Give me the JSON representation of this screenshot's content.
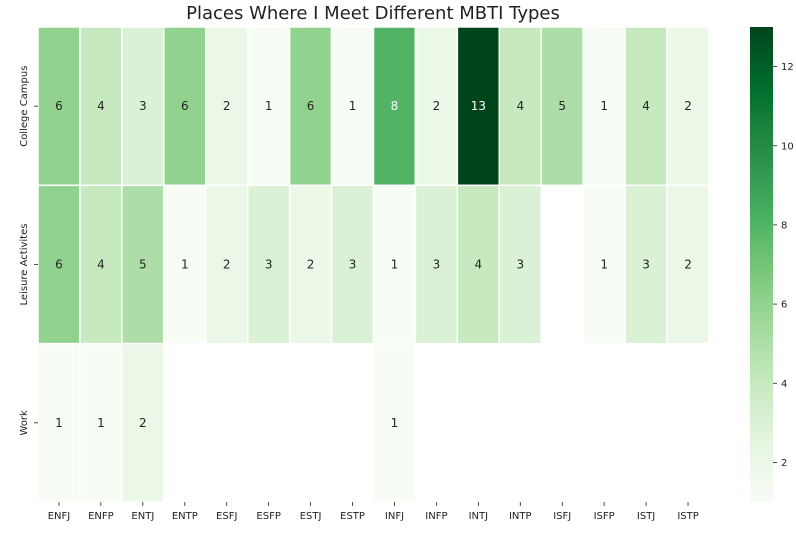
{
  "chart_data": {
    "type": "heatmap",
    "title": "Places Where I Meet Different MBTI Types",
    "columns": [
      "ENFJ",
      "ENFP",
      "ENTJ",
      "ENTP",
      "ESFJ",
      "ESFP",
      "ESTJ",
      "ESTP",
      "INFJ",
      "INFP",
      "INTJ",
      "INTP",
      "ISFJ",
      "ISFP",
      "ISTJ",
      "ISTP"
    ],
    "rows": [
      "College Campus",
      "Leisure Activites",
      "Work"
    ],
    "values": [
      [
        6,
        4,
        3,
        6,
        2,
        1,
        6,
        1,
        8,
        2,
        13,
        4,
        5,
        1,
        4,
        2
      ],
      [
        6,
        4,
        5,
        1,
        2,
        3,
        2,
        3,
        1,
        3,
        4,
        3,
        null,
        1,
        3,
        2
      ],
      [
        1,
        1,
        2,
        null,
        null,
        null,
        null,
        null,
        1,
        null,
        null,
        null,
        null,
        null,
        null,
        null
      ]
    ],
    "colormap": "Greens",
    "vmin": 1,
    "vmax": 13,
    "colorbar_ticks": [
      2,
      4,
      6,
      8,
      10,
      12
    ],
    "grid": false
  }
}
